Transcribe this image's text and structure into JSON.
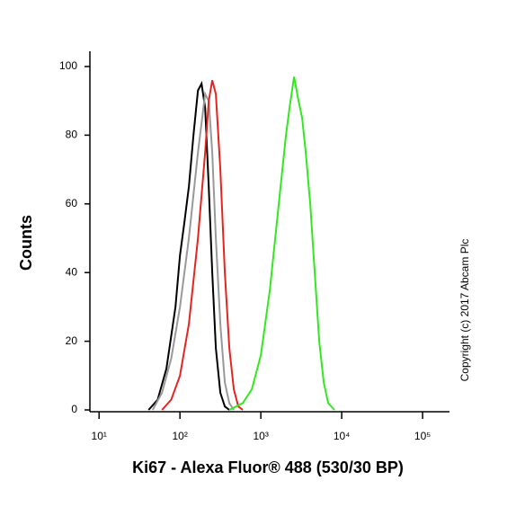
{
  "chart_data": {
    "type": "line",
    "xlabel": "Ki67 - Alexa Fluor® 488 (530/30 BP)",
    "ylabel": "Counts",
    "annotation": "Copyright (c) 2017 Abcam Plc",
    "xscale": "log",
    "xlim": [
      7.7,
      215000
    ],
    "ylim": [
      0,
      104
    ],
    "xticks": [
      {
        "value": 10,
        "label": "10¹"
      },
      {
        "value": 100,
        "label": "10²"
      },
      {
        "value": 1000,
        "label": "10³"
      },
      {
        "value": 10000,
        "label": "10⁴"
      },
      {
        "value": 100000,
        "label": "10⁵"
      }
    ],
    "yticks": [
      0,
      20,
      40,
      60,
      80,
      100
    ],
    "series": [
      {
        "color": "#000000",
        "x": [
          41,
          53,
          68,
          88,
          100,
          114,
          129,
          147,
          167,
          185,
          205,
          227,
          251,
          278,
          316,
          359,
          408
        ],
        "values": [
          0,
          3,
          12,
          30,
          45,
          55,
          65,
          80,
          93,
          95,
          88,
          65,
          40,
          18,
          5,
          1,
          0
        ]
      },
      {
        "color": "#999999",
        "x": [
          46,
          60,
          78,
          100,
          129,
          167,
          205,
          227,
          251,
          278,
          316,
          359,
          408,
          464
        ],
        "values": [
          0,
          5,
          15,
          30,
          50,
          75,
          92,
          90,
          75,
          50,
          25,
          8,
          2,
          0
        ]
      },
      {
        "color": "#e8231f",
        "x": [
          60,
          78,
          100,
          129,
          167,
          205,
          227,
          251,
          278,
          316,
          359,
          408,
          464,
          527,
          599
        ],
        "values": [
          0,
          3,
          10,
          25,
          50,
          75,
          90,
          96,
          92,
          70,
          40,
          18,
          6,
          1,
          0
        ]
      },
      {
        "color": "#33e81f",
        "x": [
          408,
          599,
          774,
          1000,
          1292,
          1668,
          2047,
          2268,
          2576,
          2929,
          3245,
          3594,
          4084,
          4642,
          5275,
          5995,
          6813,
          8147
        ],
        "values": [
          0,
          2,
          6,
          16,
          35,
          60,
          80,
          88,
          97,
          90,
          85,
          75,
          60,
          40,
          20,
          8,
          2,
          0
        ]
      }
    ]
  }
}
